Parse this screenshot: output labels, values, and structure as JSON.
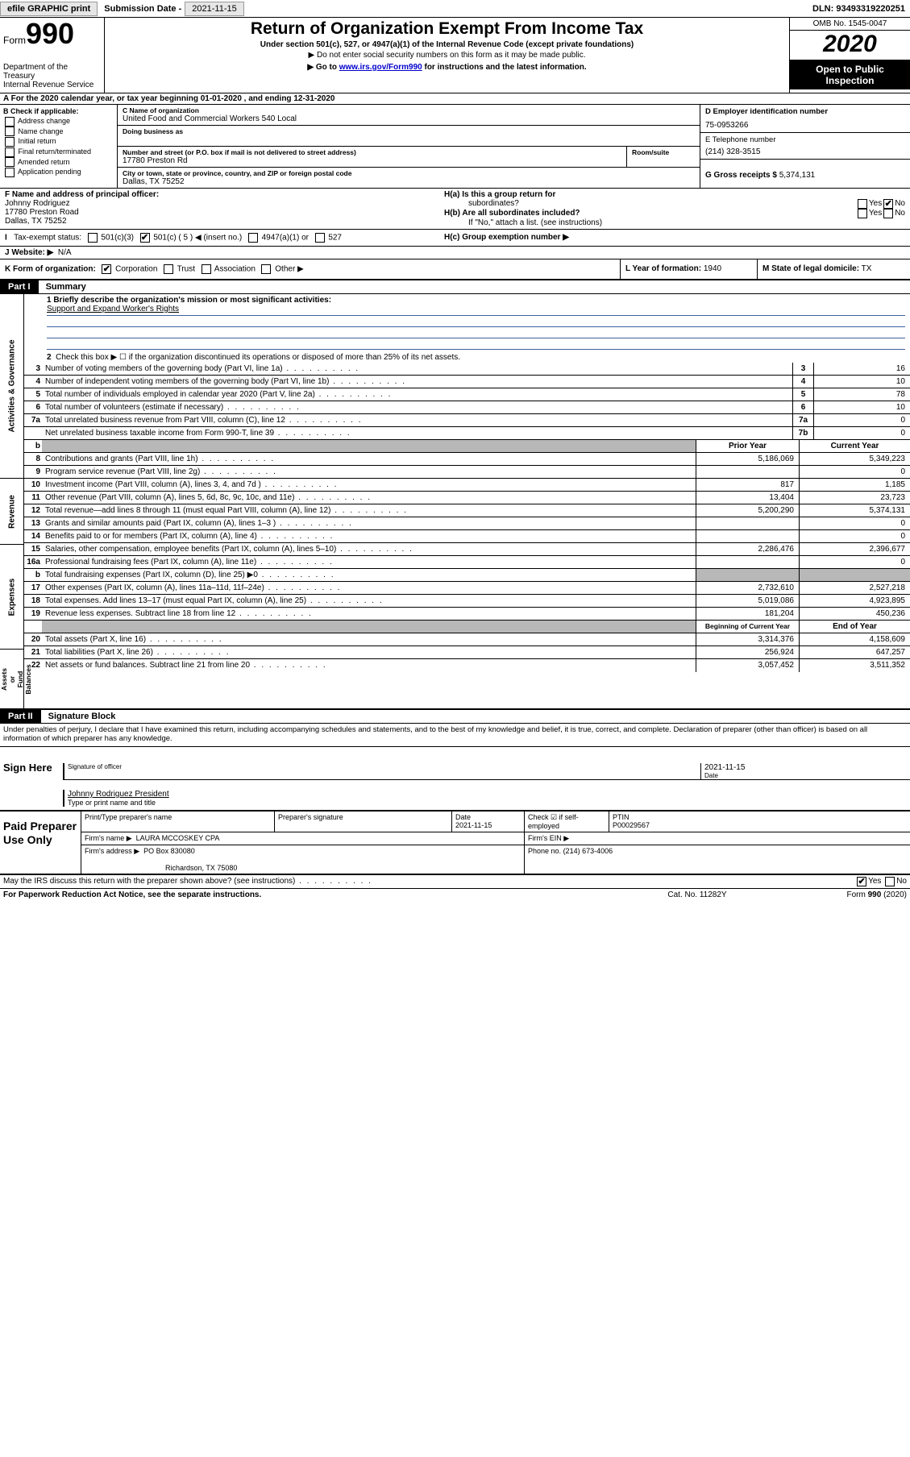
{
  "topbar": {
    "efile": "efile GRAPHIC print",
    "sub_lbl": "Submission Date -",
    "sub_val": "2021-11-15",
    "dln": "DLN: 93493319220251"
  },
  "header": {
    "form_word": "Form",
    "form_num": "990",
    "dept": "Department of the Treasury\nInternal Revenue Service",
    "title": "Return of Organization Exempt From Income Tax",
    "sub1": "Under section 501(c), 527, or 4947(a)(1) of the Internal Revenue Code (except private foundations)",
    "sub2": "▶ Do not enter social security numbers on this form as it may be made public.",
    "sub3_pre": "▶ Go to ",
    "sub3_link": "www.irs.gov/Form990",
    "sub3_post": " for instructions and the latest information.",
    "omb": "OMB No. 1545-0047",
    "year": "2020",
    "inspect": "Open to Public Inspection"
  },
  "section_a": "A  For the 2020 calendar year, or tax year beginning 01-01-2020    , and ending 12-31-2020",
  "section_b": {
    "hdr": "B Check if applicable:",
    "opts": [
      "Address change",
      "Name change",
      "Initial return",
      "Final return/terminated",
      "Amended return",
      "Application pending"
    ]
  },
  "section_c": {
    "name_lbl": "C Name of organization",
    "name": "United Food and Commercial Workers 540 Local",
    "dba_lbl": "Doing business as",
    "addr_lbl": "Number and street (or P.O. box if mail is not delivered to street address)",
    "room_lbl": "Room/suite",
    "addr": "17780 Preston Rd",
    "city_lbl": "City or town, state or province, country, and ZIP or foreign postal code",
    "city": "Dallas, TX  75252"
  },
  "section_d": {
    "ein_lbl": "D Employer identification number",
    "ein": "75-0953266",
    "tel_lbl": "E Telephone number",
    "tel": "(214) 328-3515",
    "gross_lbl": "G Gross receipts $",
    "gross": "5,374,131"
  },
  "section_f": {
    "lbl": "F Name and address of principal officer:",
    "name": "Johnny Rodriguez",
    "addr1": "17780 Preston Road",
    "addr2": "Dallas, TX  75252"
  },
  "section_h": {
    "a_lbl": "H(a)  Is this a group return for",
    "a_sub": "subordinates?",
    "b_lbl": "H(b)  Are all subordinates included?",
    "b_note": "If \"No,\" attach a list. (see instructions)",
    "c_lbl": "H(c)  Group exemption number ▶"
  },
  "section_i": {
    "lbl": "Tax-exempt status:",
    "opt1": "501(c)(3)",
    "opt2": "501(c) ( 5 ) ◀ (insert no.)",
    "opt3": "4947(a)(1) or",
    "opt4": "527"
  },
  "section_j": {
    "lbl": "J   Website: ▶",
    "val": "N/A"
  },
  "section_k": {
    "lbl": "K Form of organization:",
    "opts": [
      "Corporation",
      "Trust",
      "Association",
      "Other ▶"
    ]
  },
  "section_l": {
    "lbl": "L Year of formation:",
    "val": "1940"
  },
  "section_m": {
    "lbl": "M State of legal domicile:",
    "val": "TX"
  },
  "part1": {
    "hdr": "Part I",
    "title": "Summary"
  },
  "summary": {
    "line1_lbl": "1  Briefly describe the organization's mission or most significant activities:",
    "mission": "Support and Expand Worker's Rights",
    "line2": "Check this box ▶ ☐  if the organization discontinued its operations or disposed of more than 25% of its net assets.",
    "lines_single": [
      {
        "n": "3",
        "txt": "Number of voting members of the governing body (Part VI, line 1a)",
        "k": "3",
        "v": "16"
      },
      {
        "n": "4",
        "txt": "Number of independent voting members of the governing body (Part VI, line 1b)",
        "k": "4",
        "v": "10"
      },
      {
        "n": "5",
        "txt": "Total number of individuals employed in calendar year 2020 (Part V, line 2a)",
        "k": "5",
        "v": "78"
      },
      {
        "n": "6",
        "txt": "Total number of volunteers (estimate if necessary)",
        "k": "6",
        "v": "10"
      },
      {
        "n": "7a",
        "txt": "Total unrelated business revenue from Part VIII, column (C), line 12",
        "k": "7a",
        "v": "0"
      },
      {
        "n": "",
        "txt": "Net unrelated business taxable income from Form 990-T, line 39",
        "k": "7b",
        "v": "0"
      }
    ],
    "col_hdr1": "Prior Year",
    "col_hdr2": "Current Year",
    "rev": [
      {
        "n": "8",
        "txt": "Contributions and grants (Part VIII, line 1h)",
        "v1": "5,186,069",
        "v2": "5,349,223"
      },
      {
        "n": "9",
        "txt": "Program service revenue (Part VIII, line 2g)",
        "v1": "",
        "v2": "0"
      },
      {
        "n": "10",
        "txt": "Investment income (Part VIII, column (A), lines 3, 4, and 7d )",
        "v1": "817",
        "v2": "1,185"
      },
      {
        "n": "11",
        "txt": "Other revenue (Part VIII, column (A), lines 5, 6d, 8c, 9c, 10c, and 11e)",
        "v1": "13,404",
        "v2": "23,723"
      },
      {
        "n": "12",
        "txt": "Total revenue—add lines 8 through 11 (must equal Part VIII, column (A), line 12)",
        "v1": "5,200,290",
        "v2": "5,374,131"
      }
    ],
    "exp": [
      {
        "n": "13",
        "txt": "Grants and similar amounts paid (Part IX, column (A), lines 1–3 )",
        "v1": "",
        "v2": "0"
      },
      {
        "n": "14",
        "txt": "Benefits paid to or for members (Part IX, column (A), line 4)",
        "v1": "",
        "v2": "0"
      },
      {
        "n": "15",
        "txt": "Salaries, other compensation, employee benefits (Part IX, column (A), lines 5–10)",
        "v1": "2,286,476",
        "v2": "2,396,677"
      },
      {
        "n": "16a",
        "txt": "Professional fundraising fees (Part IX, column (A), line 11e)",
        "v1": "",
        "v2": "0"
      },
      {
        "n": "b",
        "txt": "Total fundraising expenses (Part IX, column (D), line 25) ▶0",
        "v1": "",
        "v2": "",
        "grey": true
      },
      {
        "n": "17",
        "txt": "Other expenses (Part IX, column (A), lines 11a–11d, 11f–24e)",
        "v1": "2,732,610",
        "v2": "2,527,218"
      },
      {
        "n": "18",
        "txt": "Total expenses. Add lines 13–17 (must equal Part IX, column (A), line 25)",
        "v1": "5,019,086",
        "v2": "4,923,895"
      },
      {
        "n": "19",
        "txt": "Revenue less expenses. Subtract line 18 from line 12",
        "v1": "181,204",
        "v2": "450,236"
      }
    ],
    "bal_hdr1": "Beginning of Current Year",
    "bal_hdr2": "End of Year",
    "bal": [
      {
        "n": "20",
        "txt": "Total assets (Part X, line 16)",
        "v1": "3,314,376",
        "v2": "4,158,609"
      },
      {
        "n": "21",
        "txt": "Total liabilities (Part X, line 26)",
        "v1": "256,924",
        "v2": "647,257"
      },
      {
        "n": "22",
        "txt": "Net assets or fund balances. Subtract line 21 from line 20",
        "v1": "3,057,452",
        "v2": "3,511,352"
      }
    ],
    "vtabs": {
      "gov": "Activities & Governance",
      "rev": "Revenue",
      "exp": "Expenses",
      "bal": "Net Assets or\nFund Balances"
    }
  },
  "part2": {
    "hdr": "Part II",
    "title": "Signature Block"
  },
  "penalty": "Under penalties of perjury, I declare that I have examined this return, including accompanying schedules and statements, and to the best of my knowledge and belief, it is true, correct, and complete. Declaration of preparer (other than officer) is based on all information of which preparer has any knowledge.",
  "sign": {
    "here": "Sign Here",
    "sig_lbl": "Signature of officer",
    "date": "2021-11-15",
    "date_lbl": "Date",
    "name": "Johnny Rodriguez  President",
    "name_lbl": "Type or print name and title"
  },
  "paid": {
    "hdr": "Paid Preparer Use Only",
    "r1": {
      "c1_lbl": "Print/Type preparer's name",
      "c2_lbl": "Preparer's signature",
      "c3_lbl": "Date",
      "c3_val": "2021-11-15",
      "c4_lbl": "Check ☑ if self-employed",
      "c5_lbl": "PTIN",
      "c5_val": "P00029567"
    },
    "r2": {
      "lbl": "Firm's name    ▶",
      "val": "LAURA MCCOSKEY CPA",
      "ein_lbl": "Firm's EIN ▶"
    },
    "r3": {
      "lbl": "Firm's address ▶",
      "val1": "PO Box 830080",
      "val2": "Richardson, TX  75080",
      "ph_lbl": "Phone no.",
      "ph": "(214) 673-4006"
    }
  },
  "discuss": "May the IRS discuss this return with the preparer shown above? (see instructions)",
  "footer": {
    "f1": "For Paperwork Reduction Act Notice, see the separate instructions.",
    "f2": "Cat. No. 11282Y",
    "f3": "Form 990 (2020)"
  },
  "yn": {
    "yes": "Yes",
    "no": "No"
  }
}
